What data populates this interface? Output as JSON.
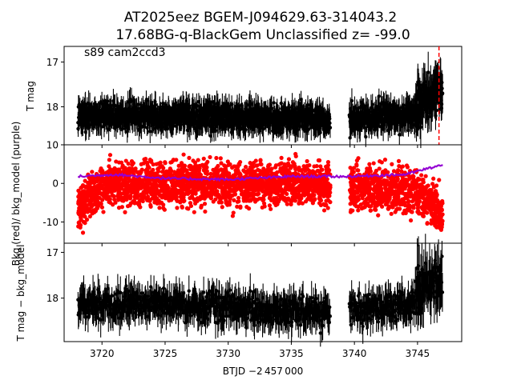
{
  "title_line1": "AT2025eez  BGEM-J094629.63-314043.2",
  "title_line2": "17.68BG-q-BlackGem Unclassified z= -99.0",
  "xlabel": "BTJD −2 457 000",
  "colors": {
    "points": "#000000",
    "bkg": "#ff0000",
    "bkg_model": "#9400d3",
    "marker": "#ff0000"
  },
  "chart_data": [
    {
      "type": "scatter",
      "panel": "top",
      "annotation": "s89 cam2ccd3",
      "ylabel": "T mag",
      "inverted_y": true,
      "xlim": [
        3717.0,
        3748.5
      ],
      "ylim": [
        18.85,
        16.65
      ],
      "yticks": [
        17,
        18
      ],
      "xticks": [
        3720,
        3725,
        3730,
        3735,
        3740,
        3745
      ],
      "segments": [
        [
          3718.1,
          3738.1
        ],
        [
          3739.6,
          3747.0
        ]
      ],
      "baseline": [
        [
          3718.1,
          18.2
        ],
        [
          3726,
          18.2
        ],
        [
          3732,
          18.25
        ],
        [
          3738.1,
          18.3
        ],
        [
          3739.6,
          18.25
        ],
        [
          3744.5,
          18.2
        ],
        [
          3745.2,
          17.9
        ],
        [
          3747.0,
          17.6
        ]
      ],
      "scatter_amplitude": 0.35,
      "marker_x": 3746.7
    },
    {
      "type": "scatter",
      "panel": "middle",
      "ylabel": "Bkg (red)/ bkg_model (purple)",
      "xlim": [
        3717.0,
        3748.5
      ],
      "ylim": [
        -15.5,
        10
      ],
      "yticks": [
        -10,
        0,
        10
      ],
      "xticks": [
        3720,
        3725,
        3730,
        3735,
        3740,
        3745
      ],
      "series": [
        {
          "name": "Bkg",
          "baseline": [
            [
              3718.1,
              -7
            ],
            [
              3719.0,
              -3
            ],
            [
              3720.5,
              0
            ],
            [
              3737,
              0
            ],
            [
              3738.1,
              -1
            ],
            [
              3739.6,
              -1
            ],
            [
              3745,
              -2
            ],
            [
              3747.0,
              -8
            ]
          ],
          "spread": 5
        },
        {
          "name": "bkg_model",
          "values": [
            [
              3718.1,
              1.8
            ],
            [
              3721,
              2.3
            ],
            [
              3725,
              1.3
            ],
            [
              3730,
              1.0
            ],
            [
              3735,
              1.8
            ],
            [
              3738.1,
              1.8
            ],
            [
              3739.6,
              1.8
            ],
            [
              3744,
              2.3
            ],
            [
              3746.7,
              4.6
            ]
          ]
        }
      ]
    },
    {
      "type": "scatter",
      "panel": "bottom",
      "ylabel": "T mag − bkg_model",
      "inverted_y": true,
      "xlim": [
        3717.0,
        3748.5
      ],
      "ylim": [
        18.95,
        16.8
      ],
      "yticks": [
        17,
        18
      ],
      "xticks": [
        3720,
        3725,
        3730,
        3735,
        3740,
        3745
      ],
      "segments": [
        [
          3718.1,
          3738.1
        ],
        [
          3739.6,
          3747.0
        ]
      ],
      "baseline": [
        [
          3718.1,
          18.15
        ],
        [
          3726,
          18.15
        ],
        [
          3732,
          18.25
        ],
        [
          3738.1,
          18.3
        ],
        [
          3739.6,
          18.25
        ],
        [
          3744.5,
          18.15
        ],
        [
          3745.2,
          17.8
        ],
        [
          3747.0,
          17.5
        ]
      ],
      "scatter_amplitude": 0.4
    }
  ]
}
